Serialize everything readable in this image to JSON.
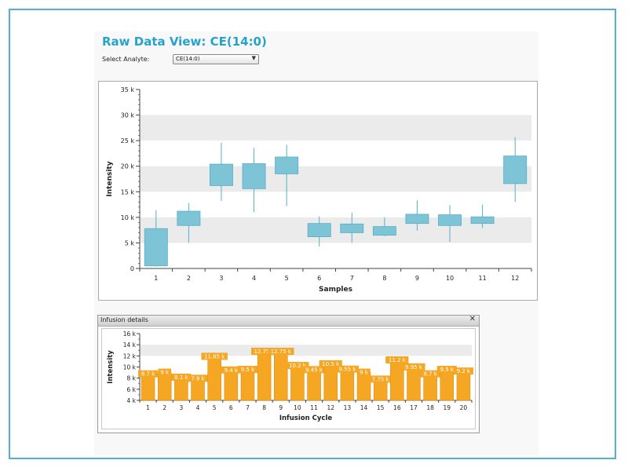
{
  "header": {
    "title": "Raw Data View:  CE(14:0)",
    "select_label": "Select Analyte:",
    "select_value": "CE(14:0)"
  },
  "colors": {
    "accent": "#25a3c9",
    "box_fill": "#7cc4d6",
    "box_stroke": "#5aaec4",
    "bar_fill": "#f5a623",
    "band": "#ebebeb"
  },
  "infusion_panel": {
    "title": "Infusion details",
    "close_icon": "close-icon"
  },
  "chart_data": [
    {
      "type": "box",
      "title": "",
      "xlabel": "Samples",
      "ylabel": "Intensity",
      "ylim": [
        0,
        35000
      ],
      "yticks": [
        0,
        5000,
        10000,
        15000,
        20000,
        25000,
        30000,
        35000
      ],
      "ytick_labels": [
        "0",
        "5 k",
        "10 k",
        "15 k",
        "20 k",
        "25 k",
        "30 k",
        "35 k"
      ],
      "categories": [
        "1",
        "2",
        "3",
        "4",
        "5",
        "6",
        "7",
        "8",
        "9",
        "10",
        "11",
        "12"
      ],
      "boxes": [
        {
          "low": 400,
          "q1": 500,
          "q3": 7800,
          "high": 11400
        },
        {
          "low": 5000,
          "q1": 8400,
          "q3": 11200,
          "high": 12800
        },
        {
          "low": 13200,
          "q1": 16200,
          "q3": 20400,
          "high": 24600
        },
        {
          "low": 11000,
          "q1": 15600,
          "q3": 20500,
          "high": 23600
        },
        {
          "low": 12200,
          "q1": 18500,
          "q3": 21800,
          "high": 24200
        },
        {
          "low": 4300,
          "q1": 6200,
          "q3": 8800,
          "high": 10200
        },
        {
          "low": 5000,
          "q1": 7000,
          "q3": 8700,
          "high": 10900
        },
        {
          "low": 6300,
          "q1": 6500,
          "q3": 8200,
          "high": 10000
        },
        {
          "low": 7400,
          "q1": 8800,
          "q3": 10600,
          "high": 13300
        },
        {
          "low": 5200,
          "q1": 8400,
          "q3": 10500,
          "high": 12400
        },
        {
          "low": 7900,
          "q1": 8800,
          "q3": 10100,
          "high": 12500
        },
        {
          "low": 13000,
          "q1": 16600,
          "q3": 22000,
          "high": 25700
        }
      ]
    },
    {
      "type": "bar",
      "title": "",
      "xlabel": "Infusion Cycle",
      "ylabel": "Intensity",
      "ylim": [
        4000,
        16000
      ],
      "yticks": [
        4000,
        6000,
        8000,
        10000,
        12000,
        14000,
        16000
      ],
      "ytick_labels": [
        "4 k",
        "6 k",
        "8 k",
        "10 k",
        "12 k",
        "14 k",
        "16 k"
      ],
      "categories": [
        "1",
        "2",
        "3",
        "4",
        "5",
        "6",
        "7",
        "8",
        "9",
        "10",
        "11",
        "12",
        "13",
        "14",
        "15",
        "16",
        "17",
        "18",
        "19",
        "20"
      ],
      "values": [
        8700,
        9000,
        8100,
        7900,
        11850,
        9400,
        9500,
        12750,
        12750,
        10200,
        9450,
        10500,
        9550,
        9000,
        7750,
        11200,
        9950,
        8700,
        9500,
        9200
      ],
      "labels": [
        "8.7 k",
        "9 k",
        "8.1 k",
        "7.9 k",
        "11.85 k",
        "9.4 k",
        "9.5 k",
        "12.75 k",
        "12.75 k",
        "10.2 k",
        "9.45 k",
        "10.5 k",
        "9.55 k",
        "9 k",
        "7.75 k",
        "11.2 k",
        "9.95 k",
        "8.7 k",
        "9.5 k",
        "9.2 k"
      ]
    }
  ]
}
